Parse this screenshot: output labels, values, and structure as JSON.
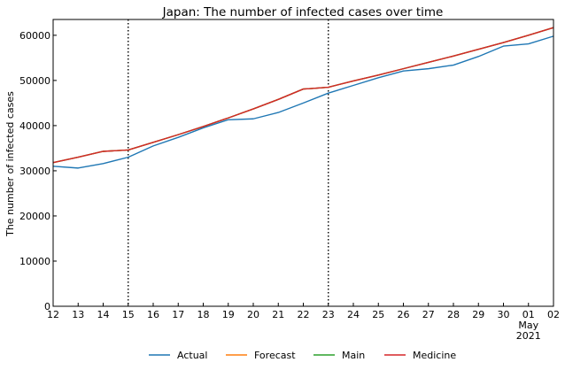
{
  "chart_data": {
    "type": "line",
    "title": "Japan: The number of infected cases over time",
    "xlabel": "",
    "ylabel": "The number of infected cases",
    "x_tick_labels": [
      "12",
      "13",
      "14",
      "15",
      "16",
      "17",
      "18",
      "19",
      "20",
      "21",
      "22",
      "23",
      "24",
      "25",
      "26",
      "27",
      "28",
      "29",
      "30",
      "01",
      "02"
    ],
    "x_sub_labels": [
      {
        "index": 19,
        "lines": [
          "May",
          "2021"
        ]
      }
    ],
    "xlim": [
      0,
      20
    ],
    "y_ticks": [
      0,
      10000,
      20000,
      30000,
      40000,
      50000,
      60000
    ],
    "y_tick_labels": [
      "0",
      "10000",
      "20000",
      "30000",
      "40000",
      "50000",
      "60000"
    ],
    "ylim": [
      0,
      63500
    ],
    "vlines": [
      3,
      11
    ],
    "grid": false,
    "legend_position": "bottom",
    "series": [
      {
        "name": "Actual",
        "color": "#1f77b4",
        "x": [
          0,
          1,
          2,
          3,
          4,
          5,
          6,
          7,
          8,
          9,
          10,
          11,
          12,
          13,
          14,
          15,
          16,
          17,
          18,
          19,
          20
        ],
        "y": [
          31000,
          30600,
          31600,
          33000,
          35500,
          37400,
          39500,
          41300,
          41500,
          42900,
          45000,
          47200,
          48900,
          50600,
          52100,
          52600,
          53400,
          55300,
          57600,
          58100,
          59800
        ]
      },
      {
        "name": "Forecast",
        "color": "#ff7f0e",
        "x": [
          0,
          1,
          2,
          3,
          4,
          5,
          6,
          7,
          8,
          9,
          10,
          10.3,
          11,
          12,
          13,
          14,
          15,
          16,
          17,
          18,
          19,
          20
        ],
        "y": [
          31800,
          33000,
          34300,
          34600,
          36300,
          38000,
          39800,
          41700,
          43700,
          45800,
          48100,
          48200,
          48500,
          49900,
          51200,
          52600,
          54000,
          55400,
          56900,
          58400,
          60000,
          61700
        ]
      },
      {
        "name": "Main",
        "color": "#2ca02c",
        "x": [
          0,
          1,
          2,
          3,
          4,
          5,
          6,
          7,
          8,
          9,
          10,
          10.3,
          11,
          12,
          13,
          14,
          15,
          16,
          17,
          18,
          19,
          20
        ],
        "y": [
          31800,
          33000,
          34300,
          34600,
          36300,
          38000,
          39800,
          41700,
          43700,
          45800,
          48100,
          48200,
          48500,
          49900,
          51200,
          52600,
          54000,
          55400,
          56900,
          58400,
          60000,
          61700
        ]
      },
      {
        "name": "Medicine",
        "color": "#d62728",
        "x": [
          0,
          1,
          2,
          3,
          4,
          5,
          6,
          7,
          8,
          9,
          10,
          10.3,
          11,
          12,
          13,
          14,
          15,
          16,
          17,
          18,
          19,
          20
        ],
        "y": [
          31800,
          33000,
          34300,
          34600,
          36300,
          38000,
          39800,
          41700,
          43700,
          45800,
          48100,
          48200,
          48500,
          49900,
          51200,
          52600,
          54000,
          55400,
          56900,
          58400,
          60000,
          61700
        ]
      }
    ]
  }
}
